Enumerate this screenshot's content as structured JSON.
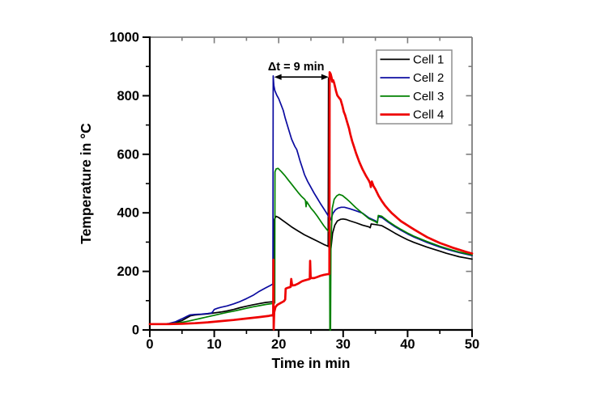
{
  "figure": {
    "background": "#ffffff",
    "frame_gray": "#7d7d7d",
    "axis_black": "#000000",
    "legend_border": "#8f8f8f",
    "text_color": "#000000"
  },
  "chart_data": {
    "type": "line",
    "title": "",
    "xlabel": "Time in min",
    "ylabel": "Temperature in °C",
    "xlim": [
      0,
      50
    ],
    "ylim": [
      0,
      1000
    ],
    "x_major_ticks": [
      0,
      10,
      20,
      30,
      40,
      50
    ],
    "x_minor_ticks": [
      5,
      15,
      25,
      35,
      45
    ],
    "y_major_ticks": [
      0,
      200,
      400,
      600,
      800,
      1000
    ],
    "y_minor_ticks": [
      100,
      300,
      500,
      700,
      900
    ],
    "grid": false,
    "legend": {
      "position": "top-right"
    },
    "annotation": {
      "text": "Δt = 9 min",
      "t_from": 19.3,
      "t_to": 27.75,
      "temp": 864,
      "label_t": 22.7,
      "label_temp": 901
    },
    "series": [
      {
        "name": "Cell 1",
        "color": "#000000",
        "width": 1.7,
        "points": [
          [
            0,
            20
          ],
          [
            2,
            20
          ],
          [
            3,
            21
          ],
          [
            4,
            25
          ],
          [
            5,
            32
          ],
          [
            5.8,
            42
          ],
          [
            6.3,
            48
          ],
          [
            7,
            51
          ],
          [
            7.5,
            52
          ],
          [
            8,
            53
          ],
          [
            9,
            55
          ],
          [
            10,
            58
          ],
          [
            11,
            61
          ],
          [
            12,
            65
          ],
          [
            13,
            70
          ],
          [
            14,
            76
          ],
          [
            15,
            81
          ],
          [
            16,
            86
          ],
          [
            17,
            90
          ],
          [
            18,
            94
          ],
          [
            19,
            96
          ],
          [
            19.28,
            97
          ],
          [
            19.32,
            378
          ],
          [
            19.6,
            388
          ],
          [
            20,
            384
          ],
          [
            20.5,
            376
          ],
          [
            21,
            368
          ],
          [
            22,
            352
          ],
          [
            23,
            338
          ],
          [
            24,
            325
          ],
          [
            25,
            314
          ],
          [
            26,
            303
          ],
          [
            27,
            292
          ],
          [
            27.55,
            287
          ],
          [
            27.68,
            285
          ],
          [
            27.72,
            860
          ],
          [
            27.78,
            284
          ],
          [
            27.92,
            282
          ],
          [
            28.02,
            271
          ],
          [
            28.1,
            278
          ],
          [
            28.35,
            330
          ],
          [
            28.7,
            358
          ],
          [
            29.1,
            372
          ],
          [
            29.6,
            378
          ],
          [
            30,
            379
          ],
          [
            30.5,
            377
          ],
          [
            31,
            373
          ],
          [
            32,
            366
          ],
          [
            33,
            358
          ],
          [
            34,
            352
          ],
          [
            34.2,
            349
          ],
          [
            34.35,
            362
          ],
          [
            35,
            360
          ],
          [
            36,
            356
          ],
          [
            37,
            344
          ],
          [
            38,
            331
          ],
          [
            39,
            319
          ],
          [
            40,
            308
          ],
          [
            41,
            299
          ],
          [
            42,
            291
          ],
          [
            43,
            283
          ],
          [
            44,
            276
          ],
          [
            45,
            269
          ],
          [
            46,
            262
          ],
          [
            47,
            256
          ],
          [
            48,
            250
          ],
          [
            49,
            246
          ],
          [
            50,
            242
          ]
        ]
      },
      {
        "name": "Cell 2",
        "color": "#0b0ba0",
        "width": 1.7,
        "points": [
          [
            0,
            20
          ],
          [
            2,
            20
          ],
          [
            3,
            22
          ],
          [
            4,
            28
          ],
          [
            5,
            38
          ],
          [
            5.8,
            47
          ],
          [
            6.2,
            51
          ],
          [
            7,
            53
          ],
          [
            8,
            54
          ],
          [
            9,
            56
          ],
          [
            9.6,
            58
          ],
          [
            9.8,
            63
          ],
          [
            10,
            70
          ],
          [
            10.5,
            74
          ],
          [
            11,
            77
          ],
          [
            12,
            82
          ],
          [
            13,
            89
          ],
          [
            14,
            97
          ],
          [
            15,
            107
          ],
          [
            16,
            118
          ],
          [
            17,
            132
          ],
          [
            18,
            144
          ],
          [
            18.7,
            152
          ],
          [
            19.1,
            157
          ],
          [
            19.15,
            868
          ],
          [
            19.25,
            835
          ],
          [
            19.4,
            818
          ],
          [
            19.7,
            802
          ],
          [
            20,
            790
          ],
          [
            20.3,
            773
          ],
          [
            20.7,
            750
          ],
          [
            21,
            724
          ],
          [
            21.5,
            688
          ],
          [
            22,
            652
          ],
          [
            22.5,
            627
          ],
          [
            22.8,
            616
          ],
          [
            23,
            601
          ],
          [
            23.3,
            578
          ],
          [
            23.7,
            551
          ],
          [
            24,
            531
          ],
          [
            24.5,
            507
          ],
          [
            25,
            487
          ],
          [
            25.5,
            467
          ],
          [
            26,
            449
          ],
          [
            26.5,
            431
          ],
          [
            27,
            414
          ],
          [
            27.4,
            400
          ],
          [
            27.7,
            389
          ],
          [
            27.95,
            374
          ],
          [
            28.1,
            378
          ],
          [
            28.4,
            398
          ],
          [
            28.8,
            410
          ],
          [
            29.2,
            416
          ],
          [
            29.7,
            419
          ],
          [
            30.2,
            419
          ],
          [
            31,
            414
          ],
          [
            32,
            407
          ],
          [
            33,
            399
          ],
          [
            34,
            383
          ],
          [
            35,
            373
          ],
          [
            35.3,
            368
          ],
          [
            35.45,
            387
          ],
          [
            36,
            384
          ],
          [
            37,
            368
          ],
          [
            38,
            353
          ],
          [
            39,
            340
          ],
          [
            40,
            328
          ],
          [
            41,
            317
          ],
          [
            42,
            308
          ],
          [
            43,
            299
          ],
          [
            44,
            291
          ],
          [
            45,
            283
          ],
          [
            46,
            276
          ],
          [
            47,
            270
          ],
          [
            48,
            264
          ],
          [
            49,
            259
          ],
          [
            50,
            254
          ]
        ]
      },
      {
        "name": "Cell 3",
        "color": "#008000",
        "width": 1.7,
        "points": [
          [
            0,
            20
          ],
          [
            2,
            20
          ],
          [
            3,
            21
          ],
          [
            4,
            23
          ],
          [
            5,
            26
          ],
          [
            6,
            30
          ],
          [
            7,
            35
          ],
          [
            8,
            40
          ],
          [
            9,
            45
          ],
          [
            10,
            50
          ],
          [
            11,
            55
          ],
          [
            12,
            60
          ],
          [
            13,
            64
          ],
          [
            14,
            69
          ],
          [
            15,
            74
          ],
          [
            16,
            79
          ],
          [
            17,
            83
          ],
          [
            18,
            87
          ],
          [
            19,
            90
          ],
          [
            19.38,
            92
          ],
          [
            19.42,
            540
          ],
          [
            19.6,
            550
          ],
          [
            19.9,
            552
          ],
          [
            20.4,
            541
          ],
          [
            21,
            526
          ],
          [
            21.5,
            512
          ],
          [
            22,
            498
          ],
          [
            22.5,
            484
          ],
          [
            23,
            470
          ],
          [
            23.5,
            457
          ],
          [
            24,
            447
          ],
          [
            24.15,
            442
          ],
          [
            24.25,
            421
          ],
          [
            24.35,
            438
          ],
          [
            25,
            416
          ],
          [
            25.5,
            403
          ],
          [
            26,
            388
          ],
          [
            26.5,
            372
          ],
          [
            27,
            356
          ],
          [
            27.5,
            342
          ],
          [
            27.9,
            333
          ],
          [
            27.94,
            0
          ],
          [
            28.04,
            0
          ],
          [
            28.1,
            295
          ],
          [
            28.3,
            415
          ],
          [
            28.6,
            446
          ],
          [
            29,
            458
          ],
          [
            29.4,
            463
          ],
          [
            29.9,
            459
          ],
          [
            30.5,
            448
          ],
          [
            31,
            438
          ],
          [
            32,
            417
          ],
          [
            33,
            398
          ],
          [
            34,
            380
          ],
          [
            35,
            370
          ],
          [
            35.3,
            365
          ],
          [
            35.45,
            391
          ],
          [
            36,
            388
          ],
          [
            37,
            371
          ],
          [
            38,
            356
          ],
          [
            39,
            343
          ],
          [
            40,
            331
          ],
          [
            41,
            320
          ],
          [
            42,
            311
          ],
          [
            43,
            302
          ],
          [
            44,
            294
          ],
          [
            45,
            286
          ],
          [
            46,
            279
          ],
          [
            47,
            272
          ],
          [
            48,
            266
          ],
          [
            49,
            261
          ],
          [
            50,
            256
          ]
        ]
      },
      {
        "name": "Cell 4",
        "color": "#ee0000",
        "width": 2.7,
        "points": [
          [
            0,
            20
          ],
          [
            3,
            20
          ],
          [
            5,
            21
          ],
          [
            7,
            23
          ],
          [
            9,
            26
          ],
          [
            11,
            30
          ],
          [
            13,
            34
          ],
          [
            15,
            39
          ],
          [
            17,
            44
          ],
          [
            18.5,
            48
          ],
          [
            19.14,
            51
          ],
          [
            19.18,
            240
          ],
          [
            19.22,
            2
          ],
          [
            19.3,
            60
          ],
          [
            19.5,
            78
          ],
          [
            19.8,
            86
          ],
          [
            20.3,
            92
          ],
          [
            20.8,
            98
          ],
          [
            21.0,
            104
          ],
          [
            21.08,
            141
          ],
          [
            21.4,
            144
          ],
          [
            21.85,
            147
          ],
          [
            21.95,
            174
          ],
          [
            22.08,
            152
          ],
          [
            22.5,
            153
          ],
          [
            23,
            158
          ],
          [
            23.6,
            166
          ],
          [
            24,
            169
          ],
          [
            24.5,
            172
          ],
          [
            24.82,
            174
          ],
          [
            24.88,
            236
          ],
          [
            24.96,
            177
          ],
          [
            25.5,
            177
          ],
          [
            26,
            181
          ],
          [
            26.5,
            185
          ],
          [
            27,
            188
          ],
          [
            27.5,
            190
          ],
          [
            27.86,
            191
          ],
          [
            27.9,
            880
          ],
          [
            28.05,
            875
          ],
          [
            28.2,
            862
          ],
          [
            28.3,
            848
          ],
          [
            28.45,
            853
          ],
          [
            28.6,
            843
          ],
          [
            28.9,
            816
          ],
          [
            29.1,
            801
          ],
          [
            29.4,
            792
          ],
          [
            29.6,
            787
          ],
          [
            29.9,
            764
          ],
          [
            30.1,
            745
          ],
          [
            30.3,
            734
          ],
          [
            30.6,
            711
          ],
          [
            30.9,
            689
          ],
          [
            31.1,
            669
          ],
          [
            31.4,
            645
          ],
          [
            31.7,
            625
          ],
          [
            32,
            604
          ],
          [
            32.5,
            574
          ],
          [
            33,
            549
          ],
          [
            33.5,
            528
          ],
          [
            34,
            510
          ],
          [
            34.2,
            500
          ],
          [
            34.3,
            488
          ],
          [
            34.45,
            507
          ],
          [
            34.7,
            492
          ],
          [
            35,
            481
          ],
          [
            35.5,
            458
          ],
          [
            36,
            440
          ],
          [
            36.5,
            425
          ],
          [
            37,
            412
          ],
          [
            37.5,
            400
          ],
          [
            38,
            390
          ],
          [
            38.5,
            380
          ],
          [
            39,
            371
          ],
          [
            39.5,
            364
          ],
          [
            40,
            357
          ],
          [
            40.5,
            350
          ],
          [
            41,
            343
          ],
          [
            42,
            330
          ],
          [
            43,
            317
          ],
          [
            44,
            307
          ],
          [
            45,
            297
          ],
          [
            46,
            289
          ],
          [
            47,
            281
          ],
          [
            48,
            274
          ],
          [
            49,
            267
          ],
          [
            50,
            261
          ]
        ]
      }
    ]
  }
}
